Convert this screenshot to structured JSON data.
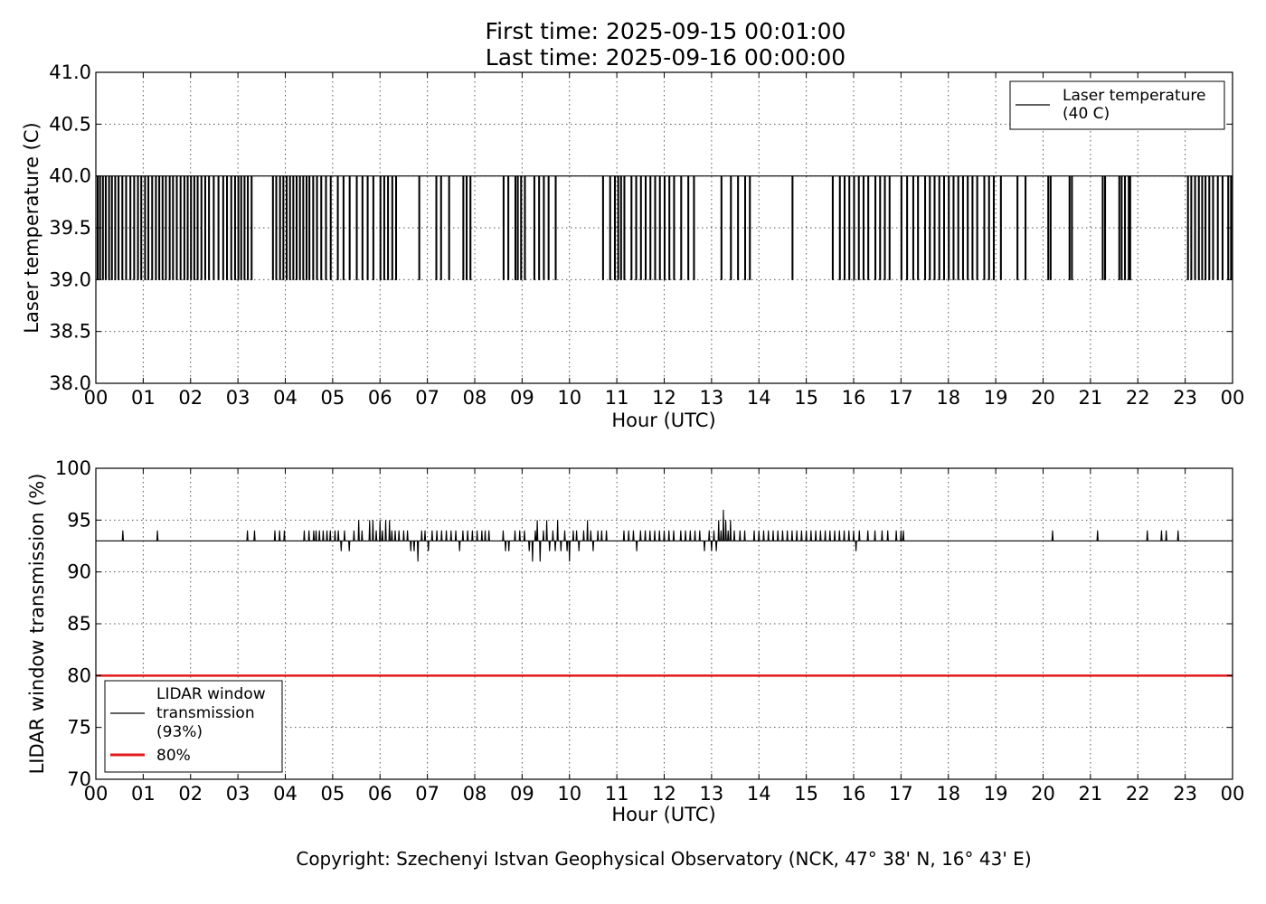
{
  "title_lines": [
    "First time: 2025-09-15 00:01:00",
    "Last time: 2025-09-16 00:00:00"
  ],
  "copyright": "Copyright: Szechenyi Istvan Geophysical Observatory (NCK, 47° 38' N, 16° 43' E)",
  "colors": {
    "series": "#000000",
    "threshold": "#e31a1c",
    "grid": "#555555"
  },
  "chart_data": [
    {
      "type": "line",
      "xlabel": "Hour (UTC)",
      "ylabel": "Laser temperature (C)",
      "xlim": [
        0,
        24
      ],
      "ylim": [
        38.0,
        41.0
      ],
      "xticks": [
        "00",
        "01",
        "02",
        "03",
        "04",
        "05",
        "06",
        "07",
        "08",
        "09",
        "10",
        "11",
        "12",
        "13",
        "14",
        "15",
        "16",
        "17",
        "18",
        "19",
        "20",
        "21",
        "22",
        "23",
        "00"
      ],
      "yticks": [
        "38.0",
        "38.5",
        "39.0",
        "39.5",
        "40.0",
        "40.5",
        "41.0"
      ],
      "grid": true,
      "legend_position": "top-right",
      "series": [
        {
          "name": "Laser temperature\n(40 C)",
          "baseline": 40.0,
          "dips_to": 39.0,
          "dip_hours": [
            0.03,
            0.08,
            0.14,
            0.2,
            0.27,
            0.33,
            0.4,
            0.47,
            0.55,
            0.63,
            0.72,
            0.8,
            0.88,
            0.95,
            1.03,
            1.1,
            1.18,
            1.26,
            1.33,
            1.4,
            1.47,
            1.55,
            1.62,
            1.7,
            1.78,
            1.86,
            1.93,
            2.0,
            2.07,
            2.14,
            2.22,
            2.3,
            2.38,
            2.48,
            2.58,
            2.68,
            2.76,
            2.85,
            2.93,
            3.0,
            3.06,
            3.13,
            3.2,
            3.28,
            3.73,
            3.8,
            3.88,
            3.95,
            4.02,
            4.09,
            4.16,
            4.23,
            4.3,
            4.37,
            4.44,
            4.5,
            4.58,
            4.66,
            4.75,
            4.85,
            4.95,
            5.1,
            5.22,
            5.35,
            5.5,
            5.62,
            5.73,
            5.85,
            6.0,
            6.08,
            6.16,
            6.25,
            6.33,
            6.82,
            7.18,
            7.28,
            7.45,
            7.75,
            7.82,
            7.9,
            8.6,
            8.7,
            8.85,
            8.9,
            8.97,
            9.05,
            9.25,
            9.35,
            9.45,
            9.55,
            9.7,
            10.7,
            10.85,
            10.95,
            11.02,
            11.08,
            11.15,
            11.3,
            11.4,
            11.5,
            11.6,
            11.7,
            11.8,
            11.9,
            12.0,
            12.1,
            12.2,
            12.35,
            12.5,
            12.62,
            13.2,
            13.4,
            13.55,
            13.7,
            13.8,
            14.7,
            15.55,
            15.7,
            15.8,
            15.9,
            16.0,
            16.1,
            16.2,
            16.3,
            16.45,
            16.55,
            16.65,
            16.75,
            17.0,
            17.12,
            17.25,
            17.35,
            17.5,
            17.6,
            17.7,
            17.8,
            17.9,
            18.0,
            18.1,
            18.2,
            18.3,
            18.4,
            18.5,
            18.6,
            18.75,
            18.85,
            18.95,
            19.1,
            19.45,
            19.62,
            20.1,
            20.15,
            20.55,
            20.6,
            21.25,
            21.3,
            21.6,
            21.65,
            21.72,
            21.8,
            21.83,
            23.05,
            23.12,
            23.2,
            23.28,
            23.35,
            23.42,
            23.5,
            23.58,
            23.68,
            23.78,
            23.9,
            23.96
          ]
        }
      ]
    },
    {
      "type": "line",
      "xlabel": "Hour (UTC)",
      "ylabel": "LIDAR window transmission (%)",
      "xlim": [
        0,
        24
      ],
      "ylim": [
        70,
        100
      ],
      "xticks": [
        "00",
        "01",
        "02",
        "03",
        "04",
        "05",
        "06",
        "07",
        "08",
        "09",
        "10",
        "11",
        "12",
        "13",
        "14",
        "15",
        "16",
        "17",
        "18",
        "19",
        "20",
        "21",
        "22",
        "23",
        "00"
      ],
      "yticks": [
        "70",
        "75",
        "80",
        "85",
        "90",
        "95",
        "100"
      ],
      "grid": true,
      "legend_position": "lower-left",
      "series": [
        {
          "name": "LIDAR window\ntransmission\n(93%)",
          "baseline": 93,
          "spikes": [
            [
              0.57,
              94
            ],
            [
              1.3,
              94
            ],
            [
              3.2,
              94
            ],
            [
              3.35,
              94
            ],
            [
              3.78,
              94
            ],
            [
              3.88,
              94
            ],
            [
              3.98,
              94
            ],
            [
              4.4,
              94
            ],
            [
              4.5,
              94
            ],
            [
              4.6,
              94
            ],
            [
              4.65,
              94
            ],
            [
              4.72,
              94
            ],
            [
              4.8,
              94
            ],
            [
              4.88,
              94
            ],
            [
              4.95,
              94
            ],
            [
              5.05,
              94
            ],
            [
              5.12,
              94
            ],
            [
              5.18,
              92
            ],
            [
              5.25,
              94
            ],
            [
              5.35,
              92
            ],
            [
              5.45,
              94
            ],
            [
              5.55,
              95
            ],
            [
              5.62,
              94
            ],
            [
              5.7,
              93
            ],
            [
              5.78,
              95
            ],
            [
              5.85,
              95
            ],
            [
              5.92,
              94
            ],
            [
              6.0,
              95
            ],
            [
              6.05,
              94
            ],
            [
              6.12,
              95
            ],
            [
              6.2,
              95
            ],
            [
              6.25,
              94
            ],
            [
              6.32,
              94
            ],
            [
              6.4,
              94
            ],
            [
              6.5,
              94
            ],
            [
              6.58,
              94
            ],
            [
              6.65,
              92
            ],
            [
              6.72,
              92
            ],
            [
              6.8,
              91
            ],
            [
              6.88,
              94
            ],
            [
              6.95,
              94
            ],
            [
              7.02,
              92
            ],
            [
              7.1,
              94
            ],
            [
              7.2,
              94
            ],
            [
              7.3,
              94
            ],
            [
              7.4,
              94
            ],
            [
              7.5,
              94
            ],
            [
              7.6,
              94
            ],
            [
              7.68,
              92
            ],
            [
              7.75,
              94
            ],
            [
              7.85,
              94
            ],
            [
              7.95,
              94
            ],
            [
              8.05,
              94
            ],
            [
              8.15,
              94
            ],
            [
              8.22,
              94
            ],
            [
              8.3,
              94
            ],
            [
              8.6,
              94
            ],
            [
              8.65,
              92
            ],
            [
              8.72,
              92
            ],
            [
              8.85,
              94
            ],
            [
              8.95,
              94
            ],
            [
              9.05,
              94
            ],
            [
              9.15,
              92
            ],
            [
              9.22,
              91
            ],
            [
              9.28,
              94
            ],
            [
              9.32,
              95
            ],
            [
              9.38,
              91
            ],
            [
              9.45,
              94
            ],
            [
              9.52,
              95
            ],
            [
              9.58,
              92
            ],
            [
              9.65,
              94
            ],
            [
              9.7,
              92
            ],
            [
              9.75,
              95
            ],
            [
              9.82,
              92
            ],
            [
              9.9,
              94
            ],
            [
              9.95,
              92
            ],
            [
              10.0,
              91
            ],
            [
              10.08,
              94
            ],
            [
              10.15,
              94
            ],
            [
              10.2,
              92
            ],
            [
              10.3,
              94
            ],
            [
              10.38,
              95
            ],
            [
              10.45,
              94
            ],
            [
              10.5,
              92
            ],
            [
              10.6,
              94
            ],
            [
              10.68,
              94
            ],
            [
              10.78,
              94
            ],
            [
              11.15,
              94
            ],
            [
              11.25,
              94
            ],
            [
              11.35,
              94
            ],
            [
              11.42,
              92
            ],
            [
              11.5,
              94
            ],
            [
              11.6,
              94
            ],
            [
              11.7,
              94
            ],
            [
              11.8,
              94
            ],
            [
              11.9,
              94
            ],
            [
              12.0,
              94
            ],
            [
              12.1,
              94
            ],
            [
              12.2,
              94
            ],
            [
              12.35,
              94
            ],
            [
              12.45,
              94
            ],
            [
              12.55,
              94
            ],
            [
              12.65,
              94
            ],
            [
              12.75,
              94
            ],
            [
              12.85,
              92
            ],
            [
              12.95,
              94
            ],
            [
              13.0,
              92
            ],
            [
              13.05,
              94
            ],
            [
              13.1,
              92
            ],
            [
              13.15,
              95
            ],
            [
              13.2,
              94
            ],
            [
              13.25,
              96
            ],
            [
              13.3,
              95
            ],
            [
              13.35,
              94
            ],
            [
              13.4,
              95
            ],
            [
              13.48,
              94
            ],
            [
              13.6,
              94
            ],
            [
              13.7,
              94
            ],
            [
              13.9,
              94
            ],
            [
              14.0,
              94
            ],
            [
              14.1,
              94
            ],
            [
              14.2,
              94
            ],
            [
              14.3,
              94
            ],
            [
              14.4,
              94
            ],
            [
              14.5,
              94
            ],
            [
              14.6,
              94
            ],
            [
              14.7,
              94
            ],
            [
              14.8,
              94
            ],
            [
              14.9,
              94
            ],
            [
              15.0,
              94
            ],
            [
              15.1,
              94
            ],
            [
              15.2,
              94
            ],
            [
              15.3,
              94
            ],
            [
              15.4,
              94
            ],
            [
              15.5,
              94
            ],
            [
              15.6,
              94
            ],
            [
              15.7,
              94
            ],
            [
              15.8,
              94
            ],
            [
              15.9,
              94
            ],
            [
              16.0,
              94
            ],
            [
              16.05,
              92
            ],
            [
              16.12,
              94
            ],
            [
              16.3,
              94
            ],
            [
              16.45,
              94
            ],
            [
              16.6,
              94
            ],
            [
              16.72,
              94
            ],
            [
              16.9,
              94
            ],
            [
              17.0,
              94
            ],
            [
              17.05,
              94
            ],
            [
              20.2,
              94
            ],
            [
              21.15,
              94
            ],
            [
              22.2,
              94
            ],
            [
              22.5,
              94
            ],
            [
              22.6,
              94
            ],
            [
              22.85,
              94
            ]
          ]
        },
        {
          "name": "80%",
          "constant": 80
        }
      ]
    }
  ]
}
